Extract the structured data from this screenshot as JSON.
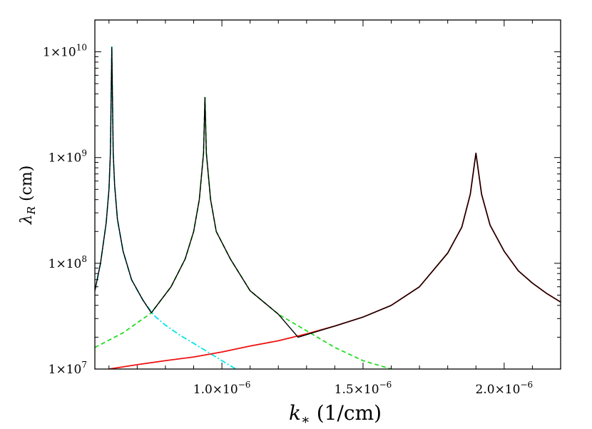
{
  "chart_data": {
    "type": "line",
    "xlabel_main": "k",
    "xlabel_sub": "∗",
    "xlabel_unit": " (1/cm)",
    "ylabel_main": "λ",
    "ylabel_sub": "R",
    "ylabel_unit": " (cm)",
    "yscale": "log",
    "xlim": [
      5.5e-07,
      2.2e-06
    ],
    "ylim": [
      10000000.0,
      20000000000.0
    ],
    "x_ticks": [
      {
        "value": 1e-06,
        "mantissa": "1.0×10",
        "exp": "−6"
      },
      {
        "value": 1.5e-06,
        "mantissa": "1.5×10",
        "exp": "−6"
      },
      {
        "value": 2e-06,
        "mantissa": "2.0×10",
        "exp": "−6"
      }
    ],
    "y_ticks": [
      {
        "value": 10000000.0,
        "mantissa": "1×10",
        "exp": "7"
      },
      {
        "value": 100000000.0,
        "mantissa": "1×10",
        "exp": "8"
      },
      {
        "value": 1000000000.0,
        "mantissa": "1×10",
        "exp": "9"
      },
      {
        "value": 10000000000.0,
        "mantissa": "1×10",
        "exp": "10"
      }
    ],
    "grid": false,
    "series": [
      {
        "color": "#00e5e5",
        "style": "dashdot",
        "x": [
          5.5e-07,
          5.7e-07,
          5.9e-07,
          6e-07,
          6.05e-07,
          6.1e-07,
          6.15e-07,
          6.2e-07,
          6.3e-07,
          6.5e-07,
          6.8e-07,
          7.2e-07,
          7.6e-07,
          8e-07,
          8.5e-07,
          9e-07,
          9.5e-07,
          1e-06,
          1.05e-06
        ],
        "y": [
          55000000.0,
          100000000.0,
          240000000.0,
          500000000.0,
          1100000000.0,
          11500000000.0,
          1100000000.0,
          550000000.0,
          260000000.0,
          130000000.0,
          70000000.0,
          45000000.0,
          32000000.0,
          26000000.0,
          21000000.0,
          17500000.0,
          14500000.0,
          12000000.0,
          10000000.0
        ]
      },
      {
        "color": "#22dd22",
        "style": "dashed",
        "x": [
          5.5e-07,
          6.5e-07,
          7.5e-07,
          8.2e-07,
          8.7e-07,
          9e-07,
          9.2e-07,
          9.35e-07,
          9.4e-07,
          9.45e-07,
          9.6e-07,
          9.8e-07,
          1.03e-06,
          1.1e-06,
          1.2e-06,
          1.3e-06,
          1.4e-06,
          1.5e-06,
          1.6e-06
        ],
        "y": [
          16000000.0,
          22000000.0,
          34000000.0,
          60000000.0,
          110000000.0,
          200000000.0,
          400000000.0,
          1100000000.0,
          3700000000.0,
          1100000000.0,
          400000000.0,
          200000000.0,
          110000000.0,
          55000000.0,
          33000000.0,
          23000000.0,
          16000000.0,
          12000000.0,
          10000000.0
        ]
      },
      {
        "color": "#ee1111",
        "style": "solid",
        "x": [
          6e-07,
          7e-07,
          8e-07,
          9e-07,
          1e-06,
          1.1e-06,
          1.2e-06,
          1.3e-06,
          1.4e-06,
          1.5e-06,
          1.6e-06,
          1.7e-06,
          1.8e-06,
          1.85e-06,
          1.88e-06,
          1.9e-06,
          1.92e-06,
          1.95e-06,
          2e-06,
          2.05e-06,
          2.1e-06,
          2.15e-06,
          2.2e-06
        ],
        "y": [
          10000000.0,
          11000000.0,
          12000000.0,
          13000000.0,
          14500000.0,
          16500000.0,
          18500000.0,
          21500000.0,
          25500000.0,
          31000000.0,
          40000000.0,
          60000000.0,
          125000000.0,
          220000000.0,
          450000000.0,
          1100000000.0,
          450000000.0,
          230000000.0,
          130000000.0,
          85000000.0,
          65000000.0,
          52000000.0,
          43000000.0
        ]
      },
      {
        "color": "#000000",
        "style": "solid",
        "x": [
          5.5e-07,
          5.7e-07,
          5.9e-07,
          6e-07,
          6.05e-07,
          6.1e-07,
          6.15e-07,
          6.2e-07,
          6.3e-07,
          6.5e-07,
          6.8e-07,
          7.2e-07,
          7.5e-07,
          8.2e-07,
          8.7e-07,
          9e-07,
          9.2e-07,
          9.35e-07,
          9.4e-07,
          9.45e-07,
          9.6e-07,
          9.8e-07,
          1.03e-06,
          1.1e-06,
          1.2e-06,
          1.27e-06,
          1.4e-06,
          1.5e-06,
          1.6e-06,
          1.7e-06,
          1.8e-06,
          1.85e-06,
          1.88e-06,
          1.9e-06,
          1.92e-06,
          1.95e-06,
          2e-06,
          2.05e-06,
          2.1e-06,
          2.15e-06,
          2.2e-06
        ],
        "y": [
          55000000.0,
          100000000.0,
          240000000.0,
          500000000.0,
          1100000000.0,
          11000000000.0,
          1100000000.0,
          550000000.0,
          260000000.0,
          130000000.0,
          70000000.0,
          45000000.0,
          34000000.0,
          60000000.0,
          110000000.0,
          200000000.0,
          400000000.0,
          1100000000.0,
          3700000000.0,
          1100000000.0,
          400000000.0,
          200000000.0,
          110000000.0,
          55000000.0,
          33000000.0,
          20000000.0,
          25500000.0,
          31000000.0,
          40000000.0,
          60000000.0,
          125000000.0,
          220000000.0,
          450000000.0,
          1100000000.0,
          450000000.0,
          230000000.0,
          130000000.0,
          85000000.0,
          65000000.0,
          52000000.0,
          43000000.0
        ]
      }
    ]
  }
}
